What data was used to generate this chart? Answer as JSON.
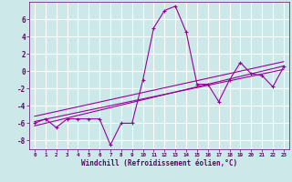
{
  "x": [
    0,
    1,
    2,
    3,
    4,
    5,
    6,
    7,
    8,
    9,
    10,
    11,
    12,
    13,
    14,
    15,
    16,
    17,
    18,
    19,
    20,
    21,
    22,
    23
  ],
  "y_main": [
    -6,
    -5.5,
    -6.5,
    -5.5,
    -5.5,
    -5.5,
    -5.5,
    -8.5,
    -6,
    -6,
    -1,
    5,
    7,
    7.5,
    4.5,
    -1.5,
    -1.5,
    -3.5,
    -1,
    1,
    -0.3,
    -0.5,
    -1.8,
    0.5
  ],
  "line_color": "#990099",
  "bg_color": "#cce8e8",
  "grid_color": "#ffffff",
  "xlabel": "Windchill (Refroidissement éolien,°C)",
  "xlabel_color": "#660066",
  "tick_color": "#660066",
  "axis_color": "#660066",
  "ylim": [
    -9,
    8
  ],
  "xlim": [
    -0.5,
    23.5
  ],
  "yticks": [
    -8,
    -6,
    -4,
    -2,
    0,
    2,
    4,
    6
  ],
  "xticks": [
    0,
    1,
    2,
    3,
    4,
    5,
    6,
    7,
    8,
    9,
    10,
    11,
    12,
    13,
    14,
    15,
    16,
    17,
    18,
    19,
    20,
    21,
    22,
    23
  ],
  "reg_lines": [
    {
      "x0": 0,
      "y0": -6.3,
      "x1": 23,
      "y1": 0.6
    },
    {
      "x0": 0,
      "y0": -5.8,
      "x1": 23,
      "y1": 0.2
    },
    {
      "x0": 0,
      "y0": -5.2,
      "x1": 23,
      "y1": 1.1
    }
  ]
}
